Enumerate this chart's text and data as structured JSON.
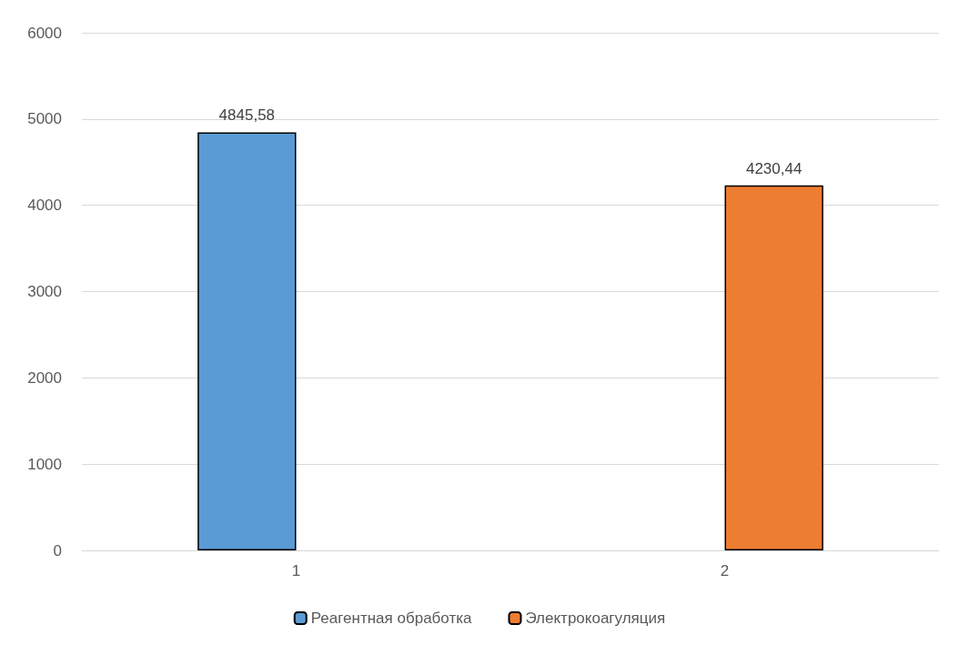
{
  "chart_data": {
    "type": "bar",
    "categories": [
      "1",
      "2"
    ],
    "series": [
      {
        "name": "Реагентная обработка",
        "color": "#5b9bd5",
        "values": [
          4845.58,
          null
        ],
        "value_labels": [
          "4845,58",
          null
        ]
      },
      {
        "name": "Электрокоагуляция",
        "color": "#ed7d31",
        "values": [
          null,
          4230.44
        ],
        "value_labels": [
          null,
          "4230,44"
        ]
      }
    ],
    "ylim": [
      0,
      6000
    ],
    "yticks": [
      0,
      1000,
      2000,
      3000,
      4000,
      5000,
      6000
    ],
    "grid": "y",
    "legend": "bottom"
  }
}
